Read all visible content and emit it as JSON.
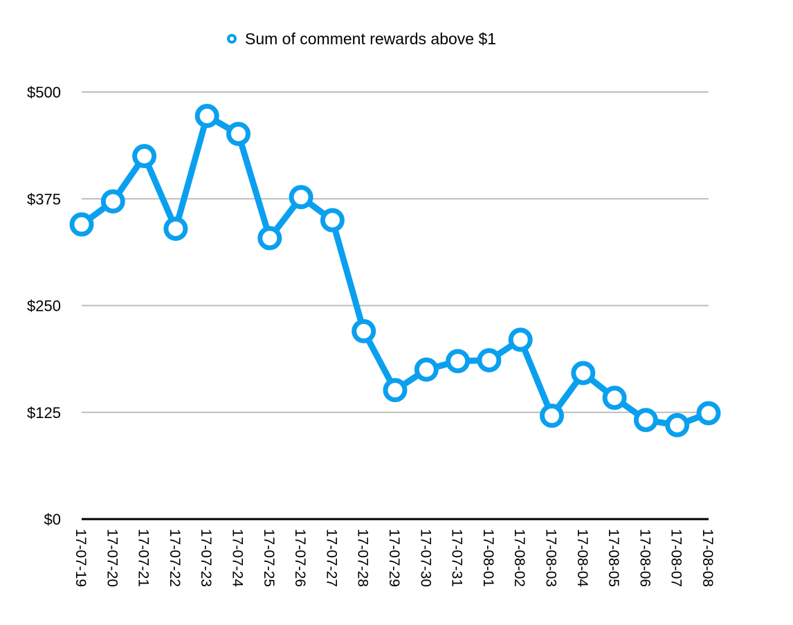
{
  "chart_data": {
    "type": "line",
    "title": "",
    "xlabel": "",
    "ylabel": "",
    "categories": [
      "17-07-19",
      "17-07-20",
      "17-07-21",
      "17-07-22",
      "17-07-23",
      "17-07-24",
      "17-07-25",
      "17-07-26",
      "17-07-27",
      "17-07-28",
      "17-07-29",
      "17-07-30",
      "17-07-31",
      "17-08-01",
      "17-08-02",
      "17-08-03",
      "17-08-04",
      "17-08-05",
      "17-08-06",
      "17-08-07",
      "17-08-08"
    ],
    "series": [
      {
        "name": "Sum of comment rewards above $1",
        "values": [
          345,
          372,
          425,
          340,
          472,
          451,
          329,
          377,
          350,
          220,
          151,
          175,
          185,
          186,
          210,
          121,
          171,
          142,
          116,
          110,
          124
        ]
      }
    ],
    "ylim": [
      0,
      500
    ],
    "yticks": [
      0,
      125,
      250,
      375,
      500
    ],
    "ytick_labels": [
      "$0",
      "$125",
      "$250",
      "$375",
      "$500"
    ],
    "grid": true,
    "legend_position": "top-center",
    "colors": {
      "series": "#0aa0ef",
      "grid": "#bdbdbd",
      "axis": "#000000",
      "marker_fill": "#ffffff"
    }
  }
}
